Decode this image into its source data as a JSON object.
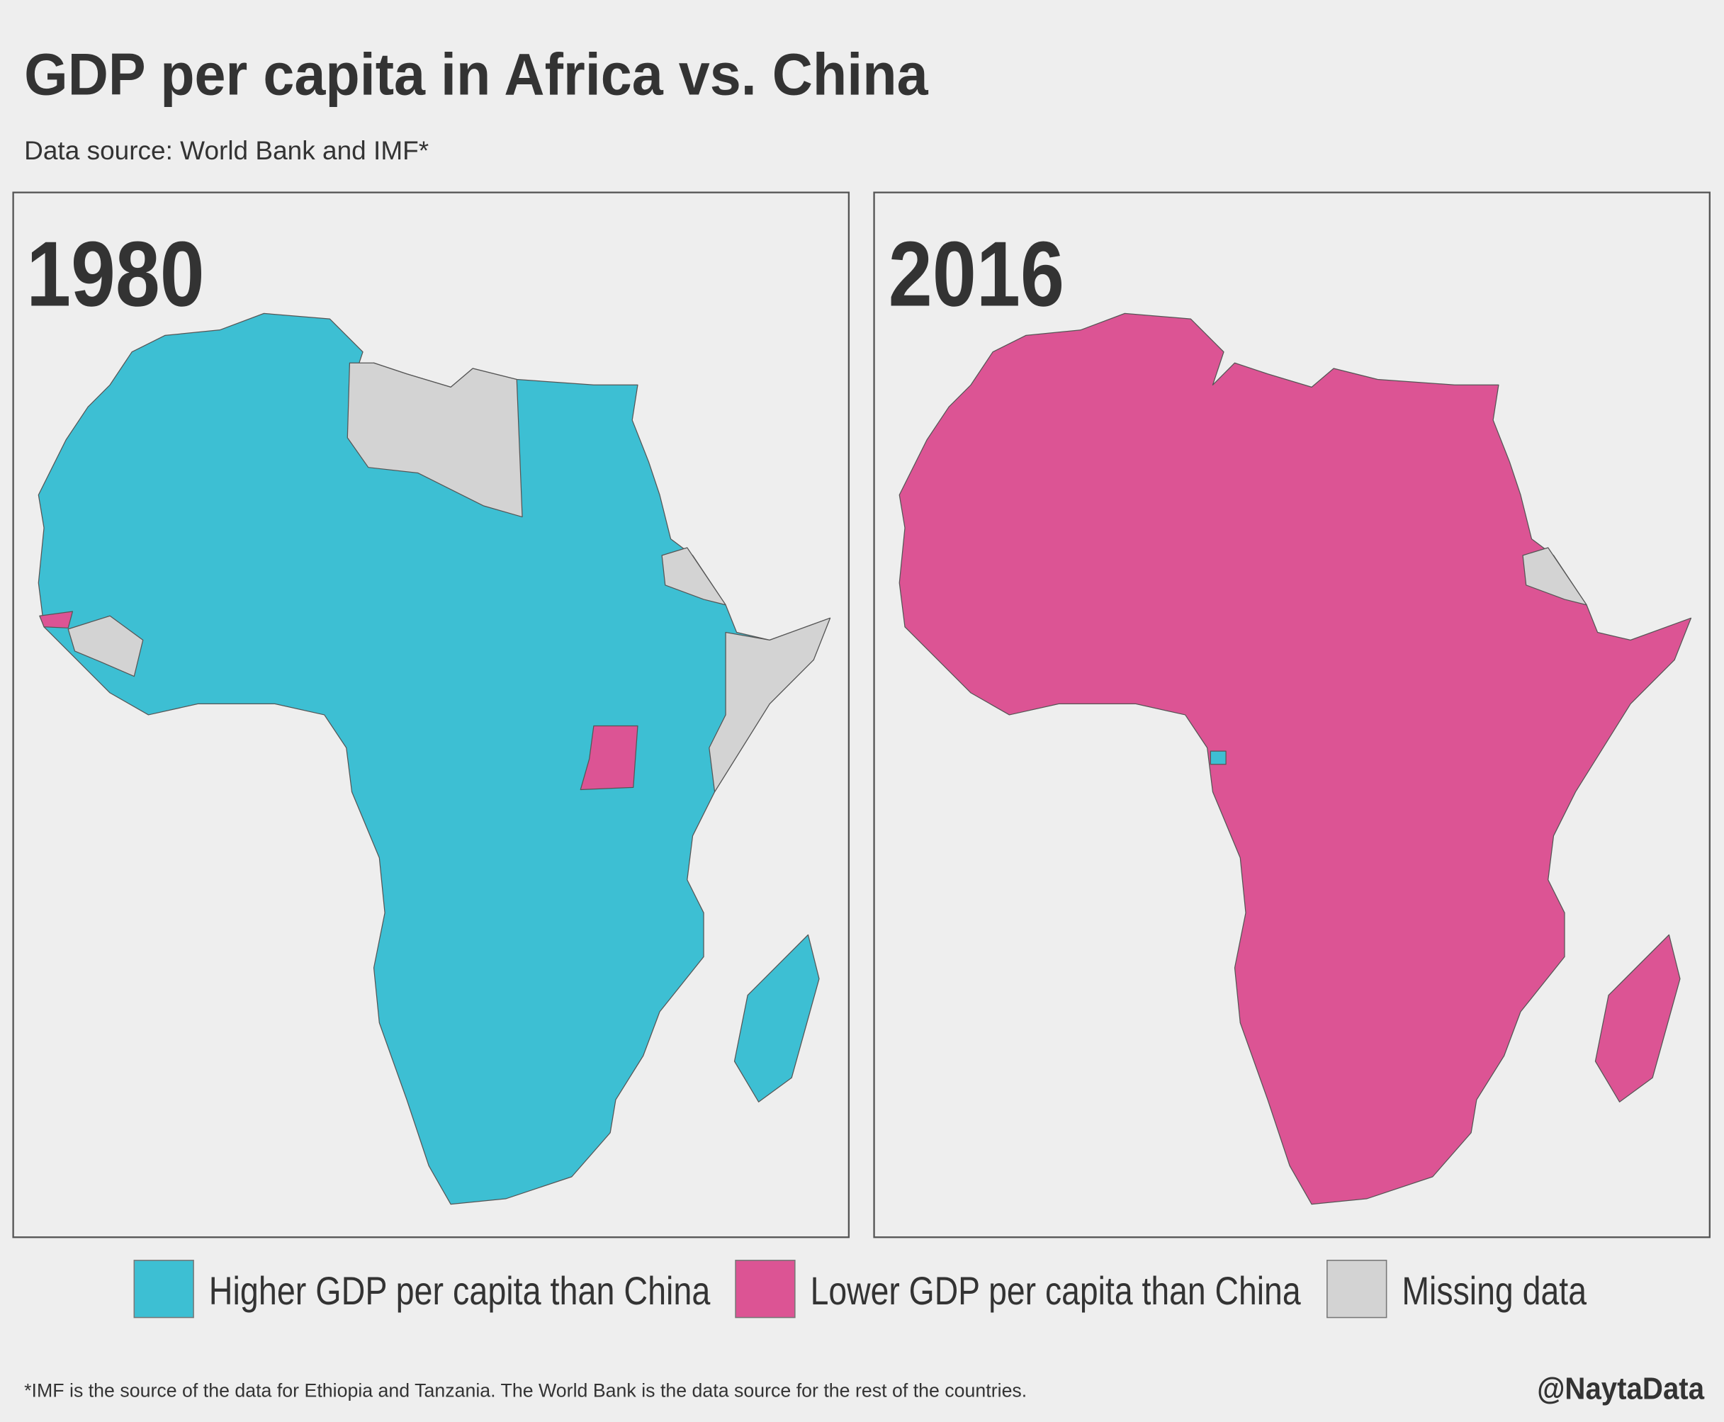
{
  "title": "GDP per capita in Africa vs. China",
  "subtitle": "Data source: World Bank and IMF*",
  "panels": [
    {
      "year": "1980"
    },
    {
      "year": "2016"
    }
  ],
  "legend": [
    {
      "label": "Higher GDP per capita than China",
      "color": "#3dbfd3"
    },
    {
      "label": "Lower GDP per capita than China",
      "color": "#dc5494"
    },
    {
      "label": "Missing data",
      "color": "#d3d3d3"
    }
  ],
  "footnote": "*IMF is the source of the data for Ethiopia and Tanzania. The World Bank is the data source for the rest of the countries.",
  "credit": "@NaytaData"
}
